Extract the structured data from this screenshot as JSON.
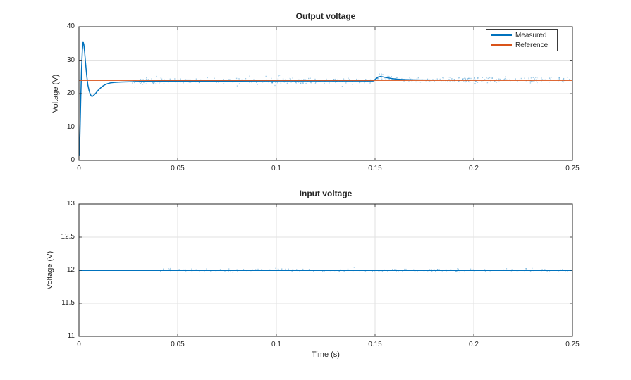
{
  "figure": {
    "background": "#ffffff"
  },
  "colors": {
    "measured": "#0072BD",
    "reference": "#D95319",
    "input": "#0072BD",
    "grid": "#e2e2e2",
    "axis": "#262626",
    "text": "#262626"
  },
  "chart_data": [
    {
      "type": "line",
      "title": "Output voltage",
      "xlabel": "",
      "ylabel": "Voltage (V)",
      "xlim": [
        0,
        0.25
      ],
      "ylim": [
        0,
        40
      ],
      "xticks": [
        0,
        0.05,
        0.1,
        0.15,
        0.2,
        0.25
      ],
      "xtick_labels": [
        "0",
        "0.05",
        "0.1",
        "0.15",
        "0.2",
        "0.25"
      ],
      "yticks": [
        0,
        10,
        20,
        30,
        40
      ],
      "ytick_labels": [
        "0",
        "10",
        "20",
        "30",
        "40"
      ],
      "grid": true,
      "legend": {
        "position": "northeast",
        "entries": [
          "Measured",
          "Reference"
        ]
      },
      "series": [
        {
          "name": "Measured",
          "color": "#0072BD",
          "width": 1.5,
          "noise": {
            "t_start": 0.027,
            "count": 540,
            "amplitude_v": 0.95
          },
          "points": [
            [
              0.0002,
              1.5
            ],
            [
              0.0005,
              8
            ],
            [
              0.0009,
              18
            ],
            [
              0.0013,
              27
            ],
            [
              0.0017,
              33
            ],
            [
              0.0021,
              35.5
            ],
            [
              0.0025,
              34.6
            ],
            [
              0.0029,
              32.3
            ],
            [
              0.0034,
              28.8
            ],
            [
              0.0039,
              25.6
            ],
            [
              0.0045,
              22.6
            ],
            [
              0.0051,
              20.9
            ],
            [
              0.0057,
              19.8
            ],
            [
              0.0063,
              19.25
            ],
            [
              0.0069,
              19.2
            ],
            [
              0.0076,
              19.55
            ],
            [
              0.0086,
              20.2
            ],
            [
              0.0096,
              20.9
            ],
            [
              0.0106,
              21.5
            ],
            [
              0.0116,
              22.05
            ],
            [
              0.0126,
              22.45
            ],
            [
              0.0136,
              22.75
            ],
            [
              0.0146,
              23.0
            ],
            [
              0.016,
              23.2
            ],
            [
              0.018,
              23.35
            ],
            [
              0.021,
              23.45
            ],
            [
              0.024,
              23.5
            ],
            [
              0.027,
              23.55
            ],
            [
              0.031,
              23.62
            ],
            [
              0.036,
              23.68
            ],
            [
              0.042,
              23.72
            ],
            [
              0.05,
              23.74
            ],
            [
              0.08,
              23.75
            ],
            [
              0.11,
              23.76
            ],
            [
              0.149,
              23.76
            ],
            [
              0.1505,
              24.45
            ],
            [
              0.1515,
              24.95
            ],
            [
              0.1525,
              25.1
            ],
            [
              0.154,
              25.0
            ],
            [
              0.156,
              24.75
            ],
            [
              0.1585,
              24.5
            ],
            [
              0.161,
              24.32
            ],
            [
              0.164,
              24.2
            ],
            [
              0.168,
              24.12
            ],
            [
              0.173,
              24.08
            ],
            [
              0.18,
              24.05
            ],
            [
              0.2,
              24.05
            ],
            [
              0.25,
              24.05
            ]
          ]
        },
        {
          "name": "Reference",
          "color": "#D95319",
          "width": 1.7,
          "points": [
            [
              0,
              24
            ],
            [
              0.25,
              24
            ]
          ]
        }
      ]
    },
    {
      "type": "line",
      "title": "Input voltage",
      "xlabel": "Time (s)",
      "ylabel": "Voltage (V)",
      "xlim": [
        0,
        0.25
      ],
      "ylim": [
        11,
        13
      ],
      "xticks": [
        0,
        0.05,
        0.1,
        0.15,
        0.2,
        0.25
      ],
      "xtick_labels": [
        "0",
        "0.05",
        "0.1",
        "0.15",
        "0.2",
        "0.25"
      ],
      "yticks": [
        11,
        11.5,
        12,
        12.5,
        13
      ],
      "ytick_labels": [
        "11",
        "11.5",
        "12",
        "12.5",
        "13"
      ],
      "grid": true,
      "legend": null,
      "series": [
        {
          "name": "Input",
          "color": "#0072BD",
          "width": 2,
          "noise": {
            "t_start": 0.04,
            "count": 180,
            "amplitude_v": 0.032
          },
          "points": [
            [
              0,
              12
            ],
            [
              0.25,
              12
            ]
          ]
        }
      ]
    }
  ]
}
